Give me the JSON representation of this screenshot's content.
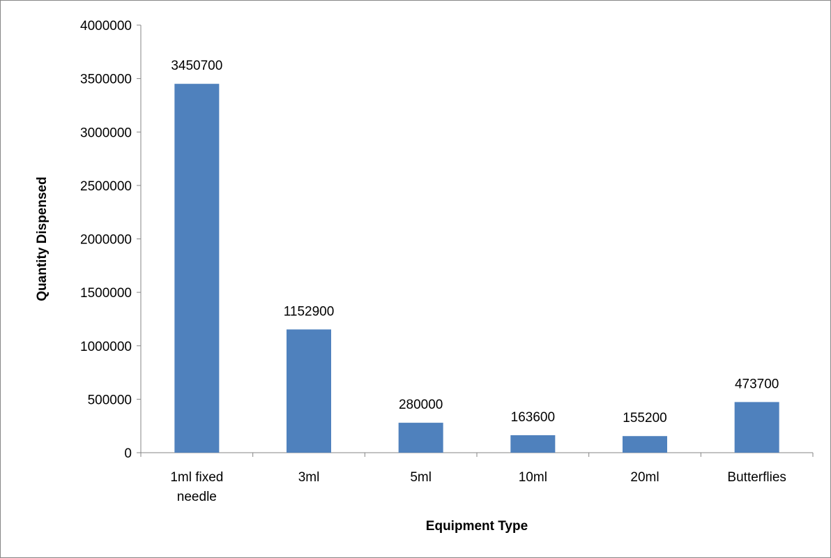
{
  "chart_data": {
    "type": "bar",
    "categories": [
      "1ml fixed needle",
      "3ml",
      "5ml",
      "10ml",
      "20ml",
      "Butterflies"
    ],
    "category_lines": [
      [
        "1ml fixed",
        "needle"
      ],
      [
        "3ml"
      ],
      [
        "5ml"
      ],
      [
        "10ml"
      ],
      [
        "20ml"
      ],
      [
        "Butterflies"
      ]
    ],
    "values": [
      3450700,
      1152900,
      280000,
      163600,
      155200,
      473700
    ],
    "data_labels": [
      "3450700",
      "1152900",
      "280000",
      "163600",
      "155200",
      "473700"
    ],
    "xlabel": "Equipment Type",
    "ylabel": "Quantity Dispensed",
    "ylim": [
      0,
      4000000
    ],
    "yticks": [
      "0",
      "500000",
      "1000000",
      "1500000",
      "2000000",
      "2500000",
      "3000000",
      "3500000",
      "4000000"
    ],
    "bar_color": "#4F81BD",
    "axis_color": "#868686",
    "grid": false,
    "legend": "none"
  }
}
